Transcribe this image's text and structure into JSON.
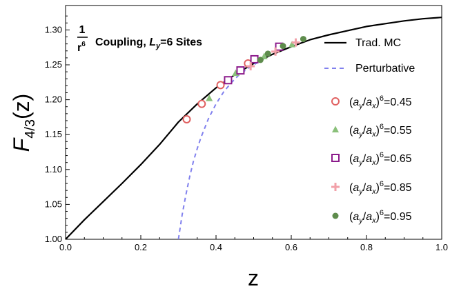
{
  "chart_data": {
    "type": "scatter",
    "xlabel": "z",
    "ylabel_main": "F",
    "ylabel_sub": "4/3",
    "ylabel_arg": "(z)",
    "xlim": [
      0.0,
      1.0
    ],
    "ylim": [
      1.0,
      1.335
    ],
    "xticks": [
      "0.0",
      "0.2",
      "0.4",
      "0.6",
      "0.8",
      "1.0"
    ],
    "xtick_values": [
      0.0,
      0.2,
      0.4,
      0.6,
      0.8,
      1.0
    ],
    "yticks": [
      "1.00",
      "1.05",
      "1.10",
      "1.15",
      "1.20",
      "1.25",
      "1.30"
    ],
    "ytick_values": [
      1.0,
      1.05,
      1.1,
      1.15,
      1.2,
      1.25,
      1.3
    ],
    "grid": false,
    "legend_position": "right",
    "annotation": {
      "numerator": "1",
      "denominator_base": "r",
      "denominator_exp": "6",
      "text_prefix": "Coupling, ",
      "L": "L",
      "L_sub": "y",
      "text_suffix": "=6 Sites"
    },
    "lines": [
      {
        "name": "Trad. MC",
        "style": "solid",
        "color": "#000000",
        "x": [
          0.0,
          0.05,
          0.1,
          0.15,
          0.2,
          0.25,
          0.3,
          0.35,
          0.4,
          0.45,
          0.5,
          0.55,
          0.6,
          0.65,
          0.7,
          0.75,
          0.8,
          0.85,
          0.9,
          0.95,
          1.0
        ],
        "y": [
          1.0,
          1.028,
          1.054,
          1.08,
          1.107,
          1.136,
          1.168,
          1.194,
          1.217,
          1.236,
          1.252,
          1.265,
          1.276,
          1.286,
          1.293,
          1.299,
          1.305,
          1.309,
          1.313,
          1.316,
          1.318
        ]
      },
      {
        "name": "Perturbative",
        "style": "dashed",
        "color": "#8080ee",
        "x": [
          0.3,
          0.31,
          0.32,
          0.33,
          0.34,
          0.35,
          0.36,
          0.38,
          0.4,
          0.42,
          0.44,
          0.46,
          0.48,
          0.5,
          0.52
        ],
        "y": [
          1.0,
          1.035,
          1.064,
          1.09,
          1.112,
          1.13,
          1.146,
          1.173,
          1.194,
          1.211,
          1.224,
          1.235,
          1.243,
          1.25,
          1.256
        ]
      }
    ],
    "series": [
      {
        "name_base": "a",
        "ratio_label": "0.45",
        "marker": "circle-open",
        "color": "#e06060",
        "x": [
          0.322,
          0.362,
          0.412,
          0.485
        ],
        "y": [
          1.172,
          1.194,
          1.221,
          1.252
        ]
      },
      {
        "name_base": "a",
        "ratio_label": "0.55",
        "marker": "triangle",
        "color": "#8ac07a",
        "x": [
          0.382,
          0.452,
          0.528,
          0.602
        ],
        "y": [
          1.202,
          1.238,
          1.262,
          1.279
        ]
      },
      {
        "name_base": "a",
        "ratio_label": "0.65",
        "marker": "square-open",
        "color": "#8b1a8b",
        "x": [
          0.432,
          0.465,
          0.502,
          0.568
        ],
        "y": [
          1.228,
          1.242,
          1.258,
          1.276
        ]
      },
      {
        "name_base": "a",
        "ratio_label": "0.85",
        "marker": "plus",
        "color": "#f2a0a8",
        "x": [
          0.492,
          0.558,
          0.612
        ],
        "y": [
          1.248,
          1.269,
          1.282
        ]
      },
      {
        "name_base": "a",
        "ratio_label": "0.95",
        "marker": "circle-filled",
        "color": "#5e8c4c",
        "x": [
          0.518,
          0.538,
          0.578,
          0.632
        ],
        "y": [
          1.257,
          1.266,
          1.277,
          1.287
        ]
      }
    ]
  }
}
